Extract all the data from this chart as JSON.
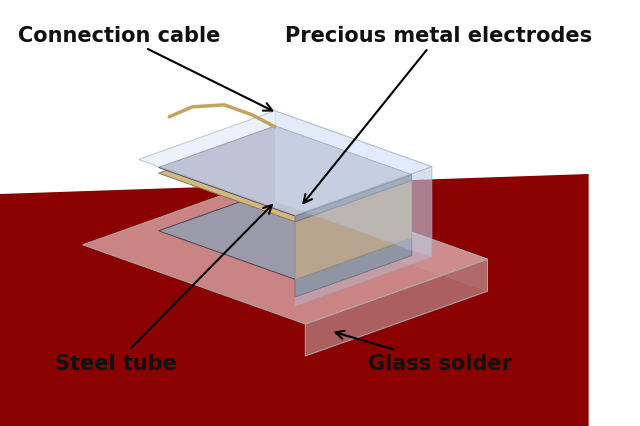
{
  "labels": {
    "connection_cable": "Connection cable",
    "precious_metal": "Precious metal electrodes",
    "steel_tube": "Steel tube",
    "glass_solder": "Glass solder"
  },
  "floor_color": "#8b0000",
  "base_front_color": "#c07878",
  "base_right_color": "#b06868",
  "base_top_color": "#d09090",
  "electrode_front": "#888890",
  "electrode_right": "#77777f",
  "electrode_top": "#9a9aaa",
  "piezo_front": "#c8a070",
  "piezo_right": "#b89060",
  "piezo_top": "#d4b880",
  "glass_front": "#c8d8f0",
  "glass_right": "#b8c8e0",
  "glass_top": "#dce8fa",
  "glass_alpha": 0.38,
  "cable_color": "#c8a060",
  "label_color": "#111111",
  "label_fontsize": 15
}
